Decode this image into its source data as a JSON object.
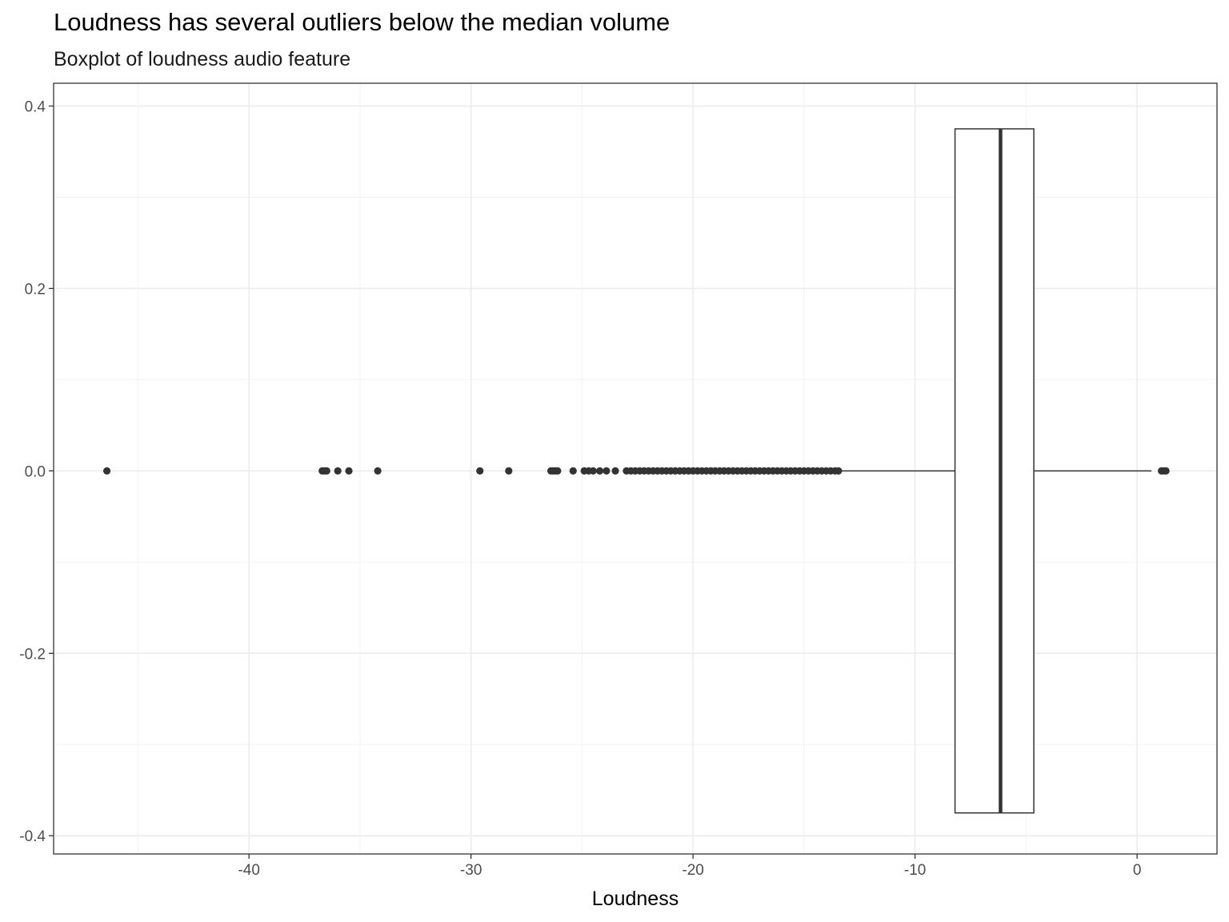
{
  "chart_data": {
    "type": "boxplot",
    "title": "Loudness has several outliers below the median volume",
    "subtitle": "Boxplot of loudness audio feature",
    "xlabel": "Loudness",
    "ylabel": "",
    "xlim": [
      -48.8,
      3.6
    ],
    "ylim": [
      -0.42,
      0.425
    ],
    "x_ticks": [
      -40,
      -30,
      -20,
      -10,
      0
    ],
    "y_ticks": [
      0.4,
      0.2,
      0.0,
      -0.2,
      -0.4
    ],
    "x_tick_labels": [
      "-40",
      "-30",
      "-20",
      "-10",
      "0"
    ],
    "y_tick_labels": [
      "0.4",
      "0.2",
      "0.0",
      "-0.2",
      "-0.4"
    ],
    "grid": true,
    "box": {
      "q1": -8.2,
      "median": -6.15,
      "q3": -4.65,
      "whisker_low": -13.35,
      "whisker_high": 0.65,
      "y": 0.0,
      "half_width": 0.375
    },
    "outliers": [
      -46.4,
      -36.7,
      -36.6,
      -36.5,
      -36.0,
      -35.5,
      -34.2,
      -29.6,
      -28.3,
      -26.4,
      -26.3,
      -26.2,
      -26.1,
      -25.4,
      -24.9,
      -24.7,
      -24.5,
      -24.2,
      -23.9,
      -23.5,
      -23.0,
      -22.8,
      -22.6,
      -22.4,
      -22.2,
      -22.0,
      -21.8,
      -21.6,
      -21.4,
      -21.2,
      -21.0,
      -20.8,
      -20.6,
      -20.4,
      -20.2,
      -20.0,
      -19.8,
      -19.6,
      -19.4,
      -19.2,
      -19.0,
      -18.8,
      -18.6,
      -18.4,
      -18.2,
      -18.0,
      -17.8,
      -17.6,
      -17.4,
      -17.2,
      -17.0,
      -16.8,
      -16.6,
      -16.4,
      -16.2,
      -16.0,
      -15.8,
      -15.6,
      -15.4,
      -15.2,
      -15.0,
      -14.8,
      -14.6,
      -14.4,
      -14.2,
      -14.0,
      -13.8,
      -13.6,
      -13.45,
      1.1,
      1.2,
      1.3
    ]
  }
}
